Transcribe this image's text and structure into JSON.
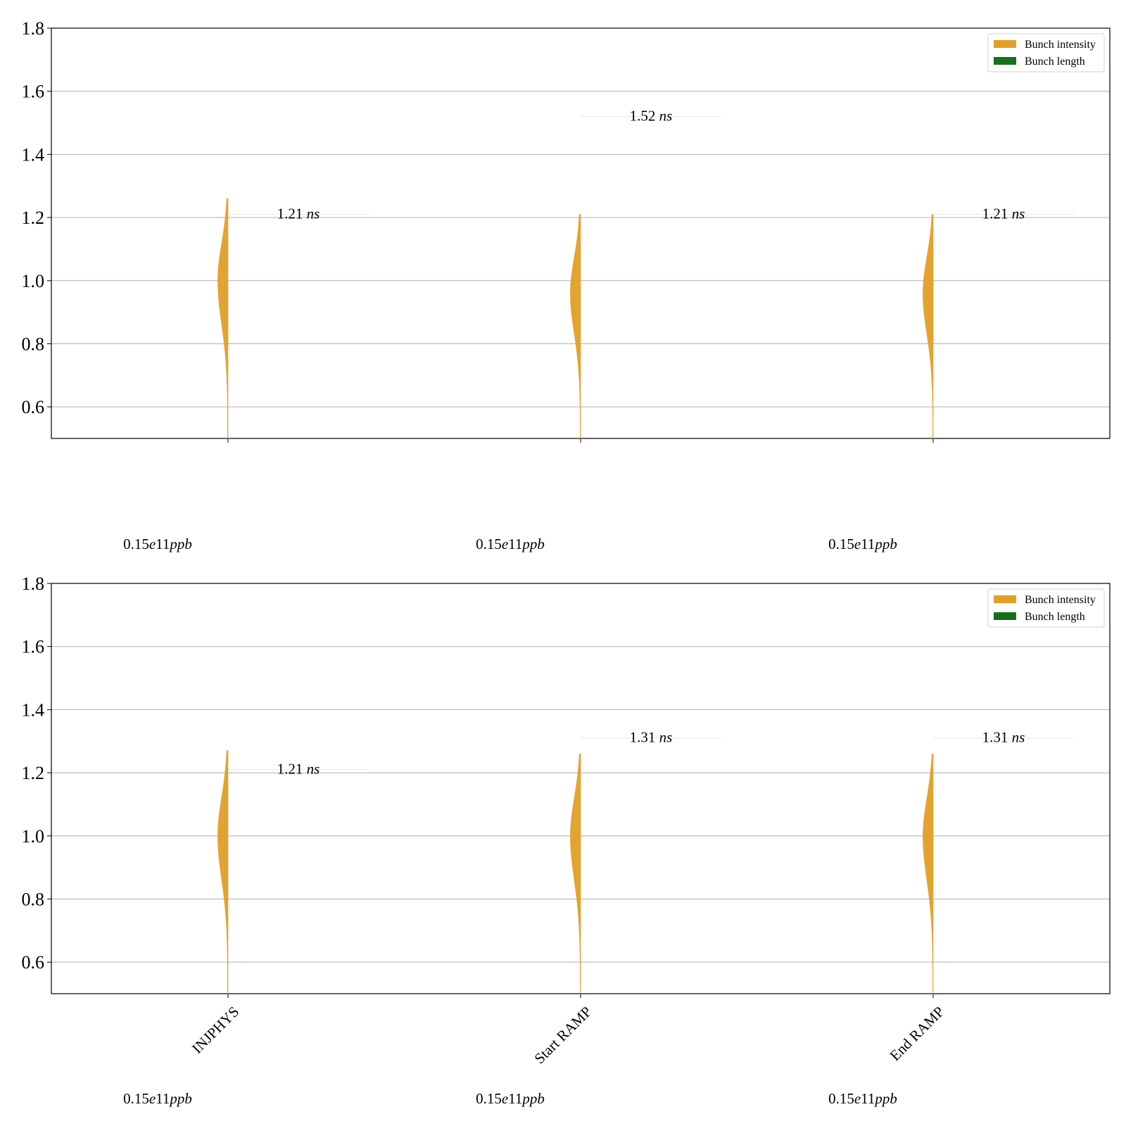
{
  "chart_data": [
    {
      "type": "violin",
      "ylim": [
        0.5,
        1.8
      ],
      "yticks": [
        "0.6",
        "0.8",
        "1.0",
        "1.2",
        "1.4",
        "1.6",
        "1.8"
      ],
      "grid": true,
      "legend": {
        "placement": "top-right",
        "entries": [
          "Bunch intensity",
          "Bunch length"
        ]
      },
      "categories": [
        "INJPHYS",
        "Start RAMP",
        "End RAMP"
      ],
      "category_labels_shown": false,
      "series": [
        {
          "name": "Bunch intensity",
          "color": "#E39F25",
          "violins": [
            {
              "min": 0.5,
              "max": 1.26,
              "peak": 1.0
            },
            {
              "min": 0.5,
              "max": 1.21,
              "peak": 0.96
            },
            {
              "min": 0.5,
              "max": 1.21,
              "peak": 0.96
            }
          ]
        },
        {
          "name": "Bunch length",
          "color": "#137219",
          "values": [
            1.21,
            1.52,
            1.21
          ]
        }
      ],
      "bunch_length_labels": [
        "1.21",
        "1.52",
        "1.21"
      ],
      "intensity_labels": [
        "0.15",
        "0.15",
        "0.15"
      ]
    },
    {
      "type": "violin",
      "ylim": [
        0.5,
        1.8
      ],
      "yticks": [
        "0.6",
        "0.8",
        "1.0",
        "1.2",
        "1.4",
        "1.6",
        "1.8"
      ],
      "grid": true,
      "legend": {
        "placement": "top-right",
        "entries": [
          "Bunch intensity",
          "Bunch length"
        ]
      },
      "categories": [
        "INJPHYS",
        "Start RAMP",
        "End RAMP"
      ],
      "category_labels_shown": true,
      "series": [
        {
          "name": "Bunch intensity",
          "color": "#E39F25",
          "violins": [
            {
              "min": 0.5,
              "max": 1.27,
              "peak": 1.0
            },
            {
              "min": 0.5,
              "max": 1.26,
              "peak": 1.0
            },
            {
              "min": 0.5,
              "max": 1.26,
              "peak": 1.0
            }
          ]
        },
        {
          "name": "Bunch length",
          "color": "#137219",
          "values": [
            1.21,
            1.31,
            1.31
          ]
        }
      ],
      "bunch_length_labels": [
        "1.21",
        "1.31",
        "1.31"
      ],
      "intensity_labels": [
        "0.15",
        "0.15",
        "0.15"
      ]
    }
  ],
  "units": {
    "length": "ns",
    "intensity_mantissa": "e11",
    "intensity": "ppb"
  }
}
